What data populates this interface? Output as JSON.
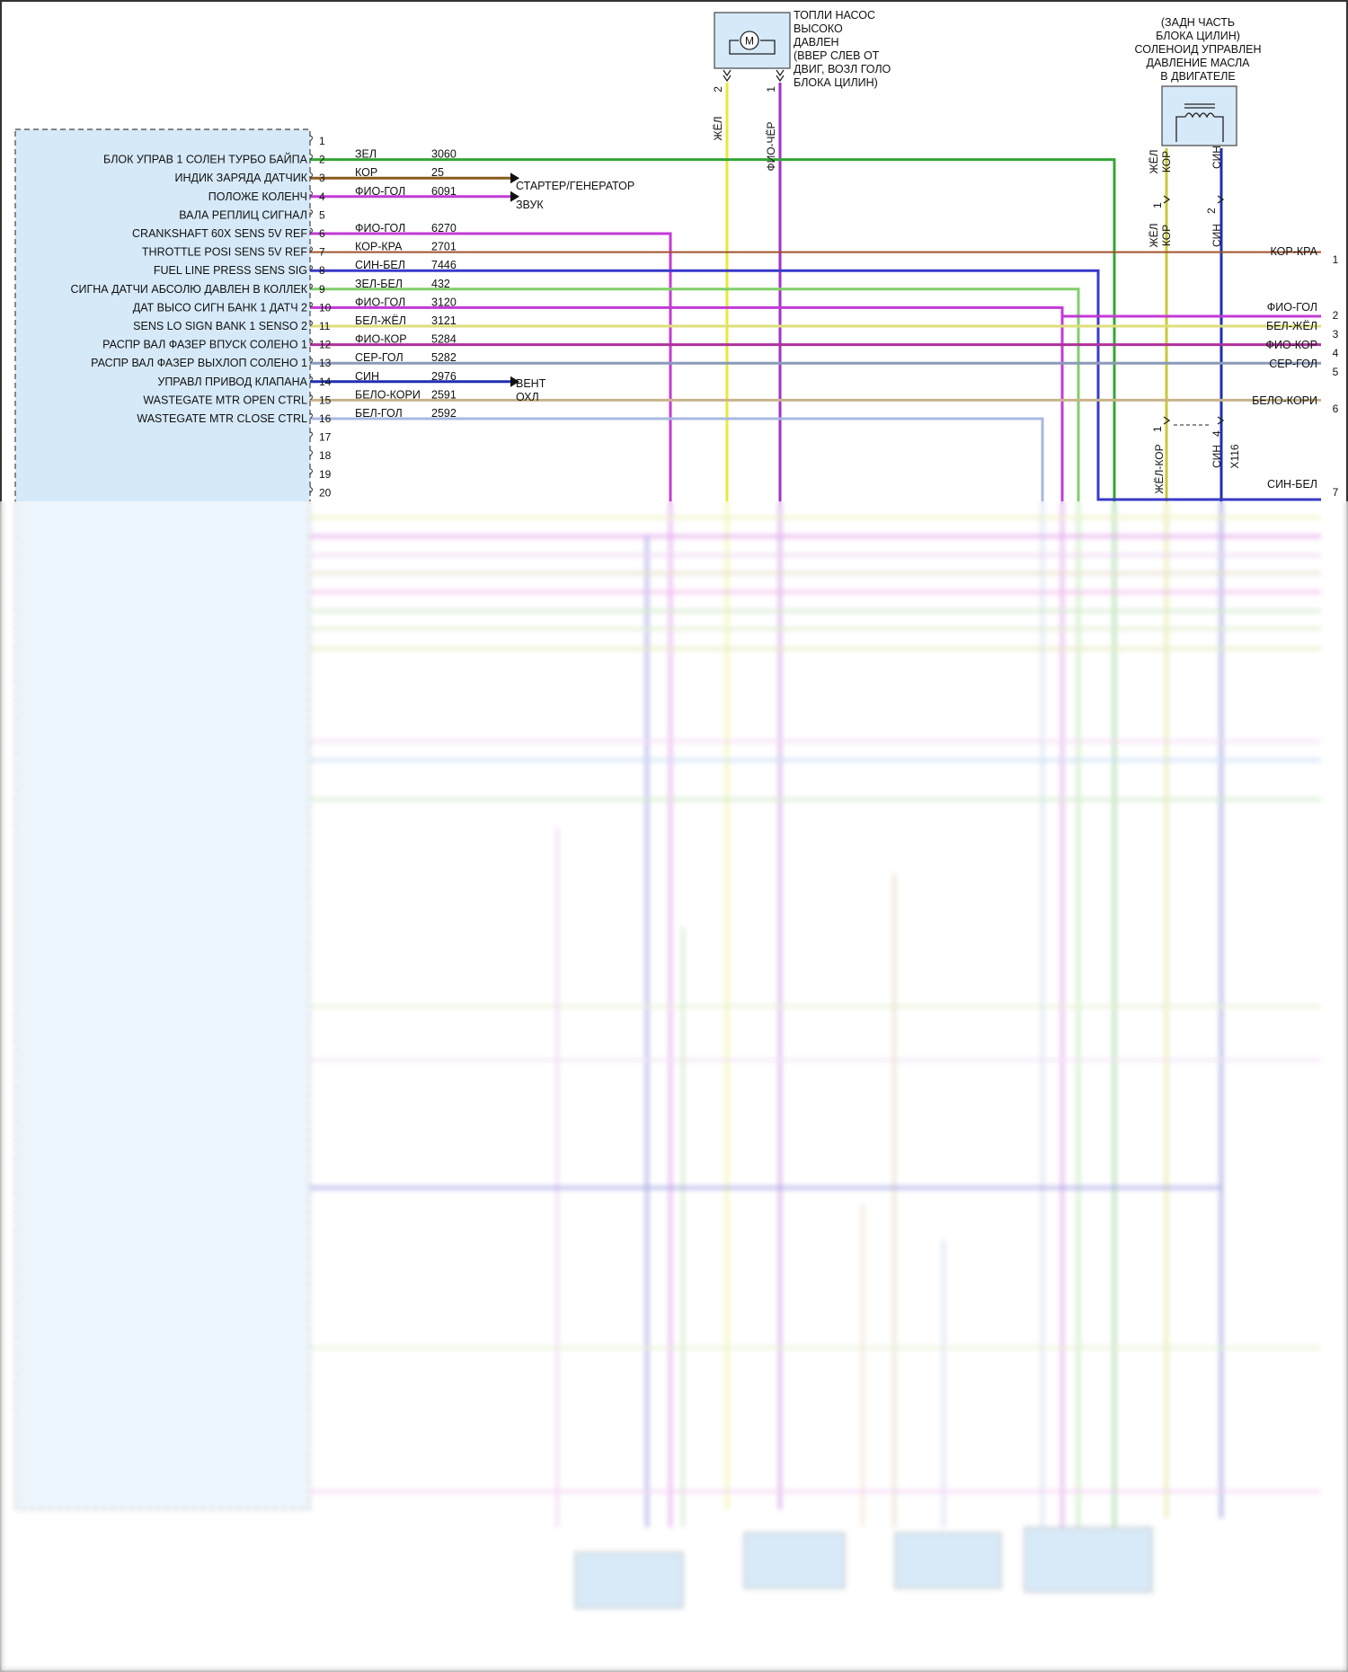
{
  "colors": {
    "module_fill": "#d6e9f8",
    "ЗЕЛ": "#34a534",
    "КОР": "#8a5a1e",
    "ФИО-ГОЛ": "#c23ad6",
    "КОР-КРА": "#a0522d",
    "СИН-БЕЛ": "#3a3ac8",
    "ЗЕЛ-БЕЛ": "#7fcf6a",
    "БЕЛ-ЖЁЛ": "#dede7a",
    "ФИО-КОР": "#b0309a",
    "СЕР-ГОЛ": "#8a9ab8",
    "СИН": "#1f2fb0",
    "БЕЛО-КОРИ": "#c8b48a",
    "БЕЛ-ГОЛ": "#a8b8e0",
    "ЖЁЛ": "#e8e83a",
    "ФИО-ЧЁР": "#a030c8",
    "ЖЁЛ-КОР": "#c8c83a"
  },
  "pump": {
    "icon": "motor-icon",
    "symbol": "M",
    "label_lines": [
      "ТОПЛИ НАСОС",
      "ВЫСОКО",
      "ДАВЛЕН",
      "(ВВЕР СЛЕВ ОТ",
      "ДВИГ, ВОЗЛ ГОЛО",
      "БЛОКА ЦИЛИН)"
    ],
    "pins": [
      {
        "pin": "2",
        "wire": "ЖЁЛ"
      },
      {
        "pin": "1",
        "wire": "ФИО-ЧЁР"
      }
    ]
  },
  "solenoid": {
    "icon": "solenoid-icon",
    "label_lines": [
      "(ЗАДН ЧАСТЬ",
      "БЛОКА ЦИЛИН)",
      "СОЛЕНОИД УПРАВЛЕН",
      "ДАВЛЕНИЕ МАСЛА",
      "В ДВИГАТЕЛЕ"
    ],
    "pins": [
      {
        "pin": "1",
        "wire": "ЖЁЛ КОР"
      },
      {
        "pin": "2",
        "wire": "СИН"
      }
    ]
  },
  "connector_x116": {
    "label": "X116",
    "pins": [
      {
        "pin": "1",
        "wire": "ЖЁЛ-КОР"
      },
      {
        "pin": "4",
        "wire": "СИН"
      }
    ],
    "upper_labels": [
      "ЖЁЛ КОР",
      "СИН"
    ]
  },
  "module_pins": [
    {
      "pin": "1",
      "label": "",
      "wire": "",
      "circuit": ""
    },
    {
      "pin": "2",
      "label": "БЛОК УПРАВ 1 СОЛЕН ТУРБО БАЙПА",
      "wire": "ЗЕЛ",
      "circuit": "3060"
    },
    {
      "pin": "3",
      "label": "ИНДИК ЗАРЯДА ДАТЧИК",
      "wire": "КОР",
      "circuit": "25",
      "dest": "СТАРТЕР/ГЕНЕРАТОР"
    },
    {
      "pin": "4",
      "label": "ПОЛОЖЕ КОЛЕНЧ",
      "wire": "ФИО-ГОЛ",
      "circuit": "6091",
      "dest": "ЗВУК"
    },
    {
      "pin": "5",
      "label": "ВАЛА РЕПЛИЦ СИГНАЛ",
      "wire": "",
      "circuit": ""
    },
    {
      "pin": "6",
      "label": "CRANKSHAFT 60X SENS 5V REF",
      "wire": "ФИО-ГОЛ",
      "circuit": "6270"
    },
    {
      "pin": "7",
      "label": "THROTTLE POSI SENS 5V REF",
      "wire": "КОР-КРА",
      "circuit": "2701"
    },
    {
      "pin": "8",
      "label": "FUEL LINE PRESS SENS SIG",
      "wire": "СИН-БЕЛ",
      "circuit": "7446"
    },
    {
      "pin": "9",
      "label": "СИГНА ДАТЧИ АБСОЛЮ ДАВЛЕН В КОЛЛЕК",
      "wire": "ЗЕЛ-БЕЛ",
      "circuit": "432"
    },
    {
      "pin": "10",
      "label": "ДАТ ВЫСО СИГН БАНК 1 ДАТЧ 2",
      "wire": "ФИО-ГОЛ",
      "circuit": "3120"
    },
    {
      "pin": "11",
      "label": "SENS LO SIGN BANK 1 SENSO 2",
      "wire": "БЕЛ-ЖЁЛ",
      "circuit": "3121"
    },
    {
      "pin": "12",
      "label": "РАСПР ВАЛ ФАЗЕР ВПУСК СОЛЕНО 1",
      "wire": "ФИО-КОР",
      "circuit": "5284"
    },
    {
      "pin": "13",
      "label": "РАСПР ВАЛ ФАЗЕР ВЫХЛОП СОЛЕНО 1",
      "wire": "СЕР-ГОЛ",
      "circuit": "5282"
    },
    {
      "pin": "14",
      "label": "УПРАВЛ ПРИВОД КЛАПАНА",
      "wire": "СИН",
      "circuit": "2976",
      "dest": "ВЕНТ ОХЛ"
    },
    {
      "pin": "15",
      "label": "WASTEGATE MTR OPEN CTRL",
      "wire": "БЕЛО-КОРИ",
      "circuit": "2591"
    },
    {
      "pin": "16",
      "label": "WASTEGATE MTR CLOSE CTRL",
      "wire": "БЕЛ-ГОЛ",
      "circuit": "2592"
    },
    {
      "pin": "17",
      "label": "",
      "wire": "",
      "circuit": ""
    },
    {
      "pin": "18",
      "label": "",
      "wire": "",
      "circuit": ""
    },
    {
      "pin": "19",
      "label": "",
      "wire": "",
      "circuit": ""
    },
    {
      "pin": "20",
      "label": "",
      "wire": "",
      "circuit": ""
    }
  ],
  "dest_texts": {
    "starter": "СТАРТЕР/ГЕНЕРАТОР",
    "sound": "ЗВУК",
    "fan_1": "ВЕНТ",
    "fan_2": "ОХЛ"
  },
  "right_connector": [
    {
      "pin": "1",
      "wire": "КОР-КРА"
    },
    {
      "pin": "2",
      "wire": "ФИО-ГОЛ"
    },
    {
      "pin": "3",
      "wire": "БЕЛ-ЖЁЛ"
    },
    {
      "pin": "4",
      "wire": "ФИО-КОР"
    },
    {
      "pin": "5",
      "wire": "СЕР-ГОЛ"
    },
    {
      "pin": "6",
      "wire": "БЕЛО-КОРИ"
    },
    {
      "pin": "7",
      "wire": "СИН-БЕЛ"
    }
  ]
}
